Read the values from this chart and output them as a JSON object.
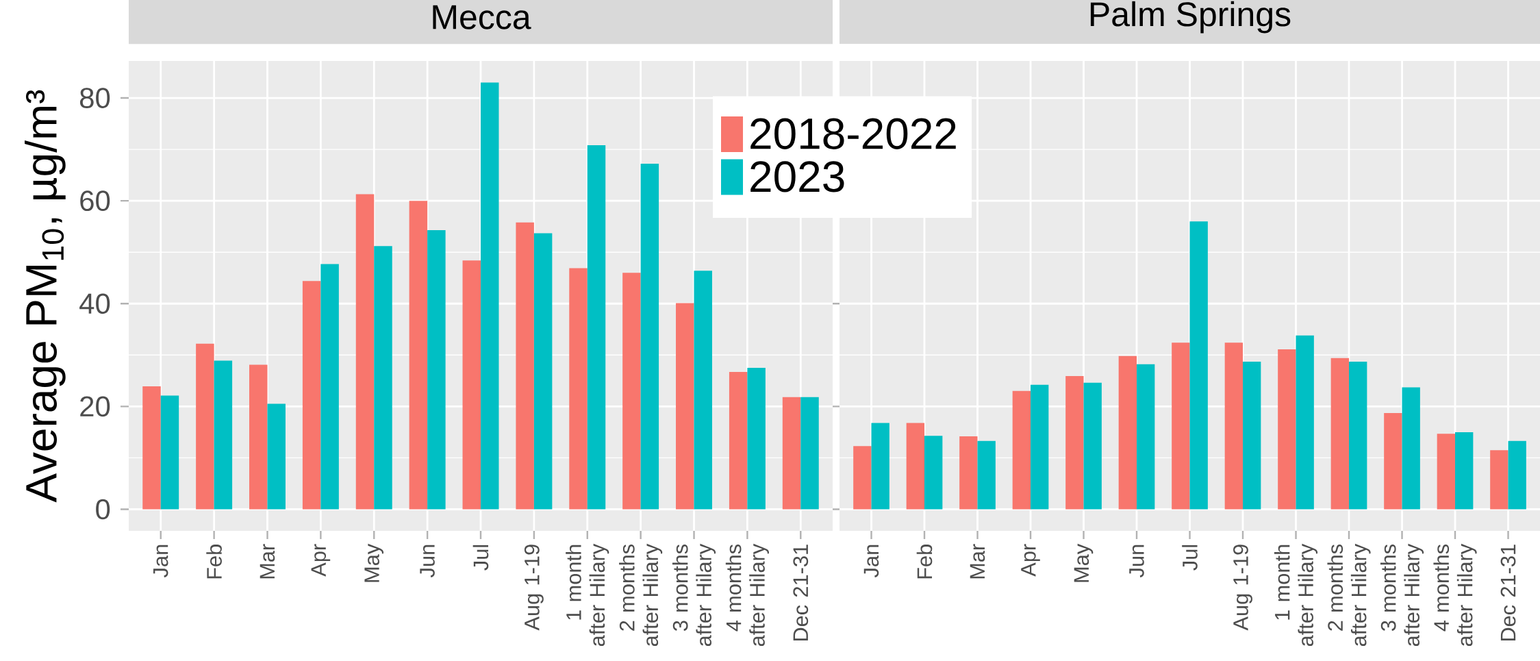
{
  "chart_data": [
    {
      "type": "bar",
      "title": "Mecca",
      "ylabel": "Average PM$_{10}$, µg/m³",
      "categories": [
        "Jan",
        "Feb",
        "Mar",
        "Apr",
        "May",
        "Jun",
        "Jul",
        "Aug 1-19",
        "1 month after Hilary",
        "2 months after Hilary",
        "3 months after Hilary",
        "4 months after Hilary",
        "Dec 21-31"
      ],
      "series": [
        {
          "name": "2018-2022",
          "color": "#f8766d",
          "values": [
            23.9,
            32.2,
            28.1,
            44.4,
            61.3,
            60.0,
            48.4,
            55.8,
            46.9,
            46.0,
            40.1,
            26.7,
            21.8
          ]
        },
        {
          "name": "2023",
          "color": "#00bfc4",
          "values": [
            22.1,
            28.9,
            20.5,
            47.7,
            51.2,
            54.3,
            83.0,
            53.7,
            70.8,
            67.2,
            46.4,
            27.5,
            21.8
          ]
        }
      ],
      "ylim": [
        -4.2,
        87.2
      ],
      "yticks": [
        0,
        20,
        40,
        60,
        80
      ],
      "grid": true,
      "legend": "top right"
    },
    {
      "type": "bar",
      "title": "Palm Springs",
      "categories": [
        "Jan",
        "Feb",
        "Mar",
        "Apr",
        "May",
        "Jun",
        "Jul",
        "Aug 1-19",
        "1 month after Hilary",
        "2 months after Hilary",
        "3 months after Hilary",
        "4 months after Hilary",
        "Dec 21-31"
      ],
      "series": [
        {
          "color": "#f8766d",
          "values": [
            12.3,
            16.8,
            14.2,
            23.0,
            25.9,
            29.8,
            32.4,
            32.4,
            31.1,
            29.4,
            18.7,
            14.7,
            11.5
          ]
        },
        {
          "color": "#00bfc4",
          "values": [
            16.8,
            14.3,
            13.3,
            24.2,
            24.6,
            28.2,
            56.0,
            28.7,
            33.8,
            28.7,
            23.7,
            15.0,
            13.3
          ]
        }
      ],
      "ylim": [
        -4.2,
        87.2
      ],
      "yticks": [
        0,
        20,
        40,
        60,
        80
      ],
      "grid": true,
      "tick_labels": "x"
    }
  ]
}
